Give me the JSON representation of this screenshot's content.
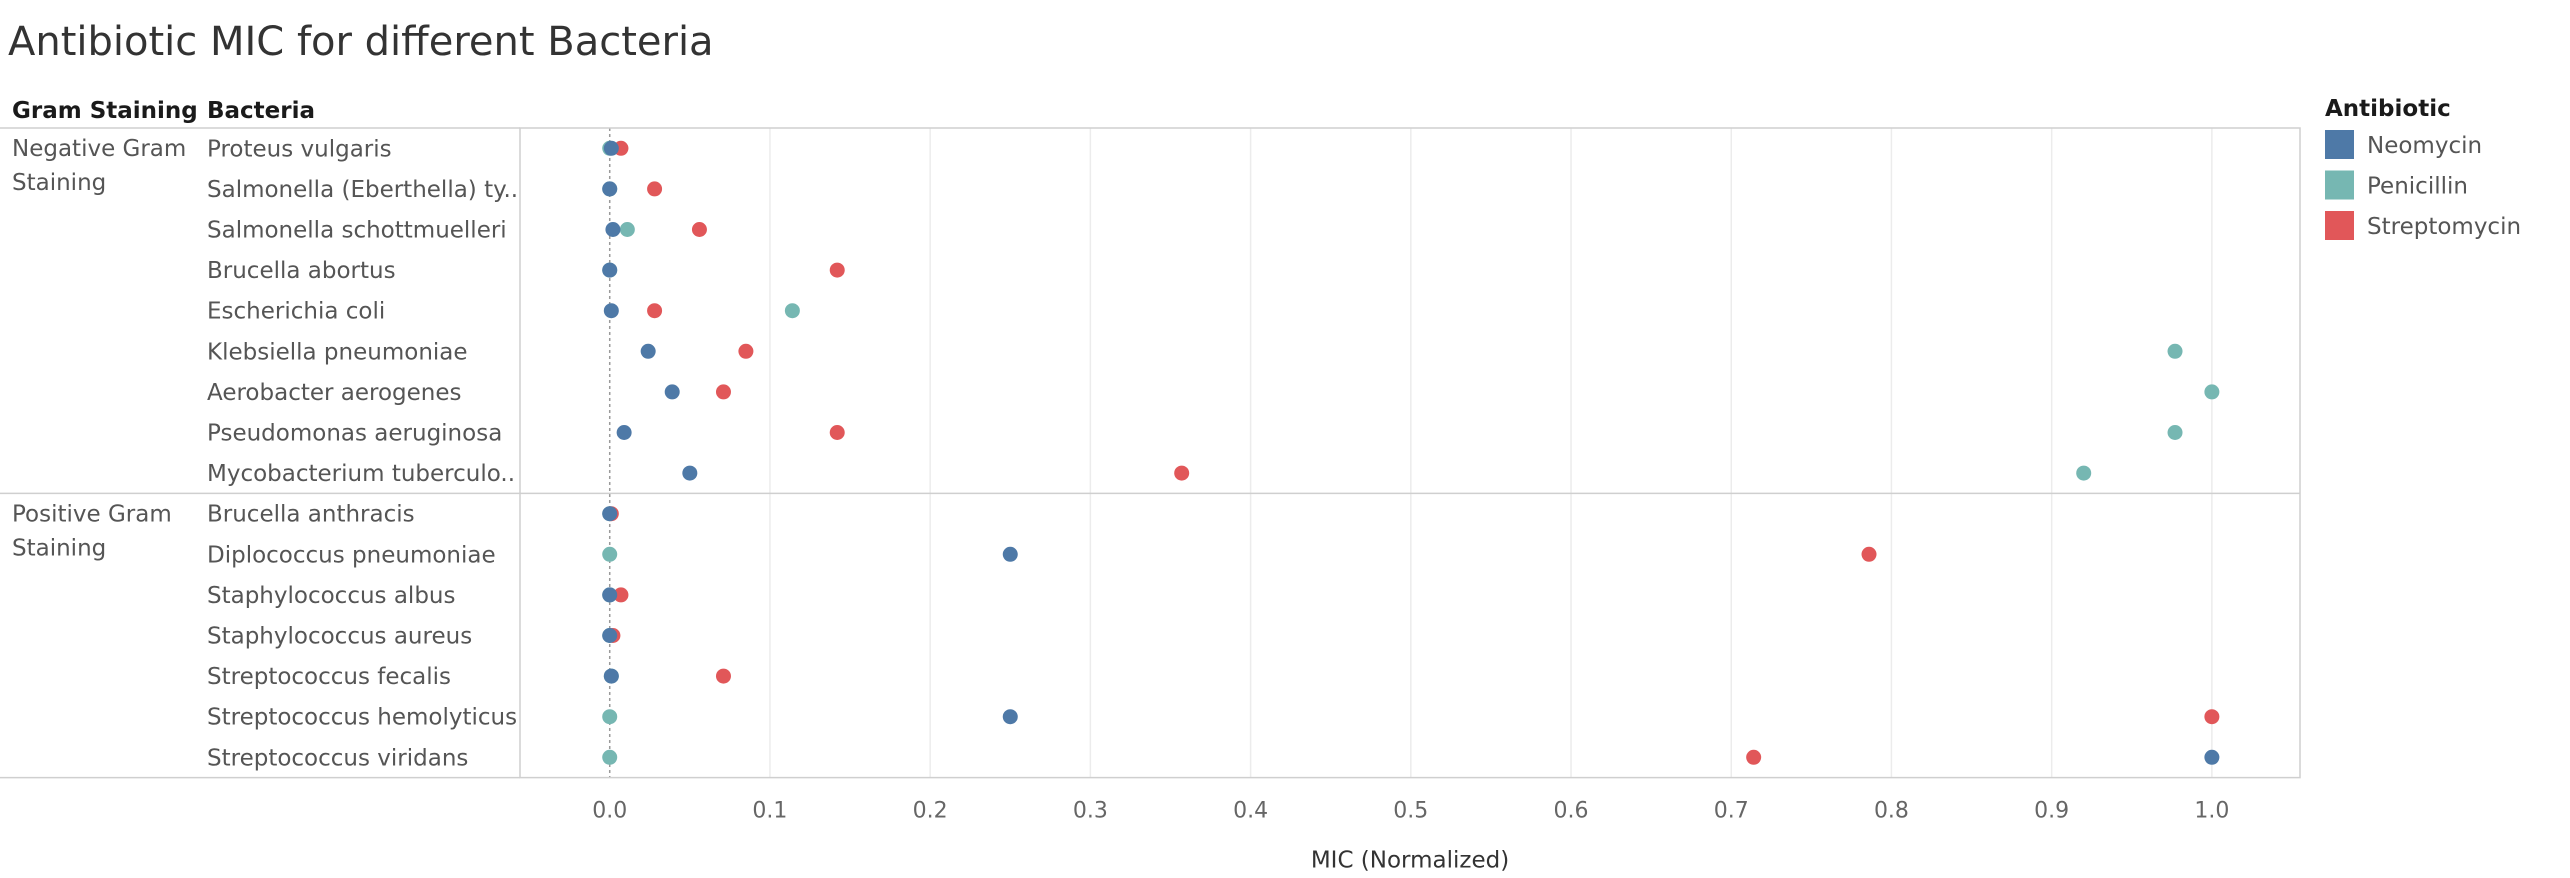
{
  "chart_data": {
    "type": "scatter",
    "title": "Antibiotic MIC for different Bacteria",
    "row_headers": [
      "Gram Staining",
      "Bacteria"
    ],
    "xlabel": "MIC (Normalized)",
    "xlim": [
      -0.056,
      1.055
    ],
    "xticks": [
      "0.0",
      "0.1",
      "0.2",
      "0.3",
      "0.4",
      "0.5",
      "0.6",
      "0.7",
      "0.8",
      "0.9",
      "1.0"
    ],
    "legend": {
      "title": "Antibiotic",
      "items": [
        {
          "name": "Neomycin",
          "color": "#4e79a7"
        },
        {
          "name": "Penicillin",
          "color": "#76b7b2"
        },
        {
          "name": "Streptomycin",
          "color": "#e15759"
        }
      ]
    },
    "groups": [
      {
        "name_lines": [
          "Negative Gram",
          "Staining"
        ],
        "rows": [
          {
            "label": "Proteus vulgaris",
            "values": {
              "Penicillin": 0.0,
              "Streptomycin": 0.007,
              "Neomycin": 0.001
            }
          },
          {
            "label": "Salmonella (Eberthella) ty..",
            "values": {
              "Penicillin": 0.0,
              "Streptomycin": 0.028,
              "Neomycin": 0.0
            }
          },
          {
            "label": "Salmonella schottmuelleri",
            "values": {
              "Penicillin": 0.011,
              "Streptomycin": 0.056,
              "Neomycin": 0.002
            }
          },
          {
            "label": "Brucella abortus",
            "values": {
              "Penicillin": 0.0,
              "Streptomycin": 0.142,
              "Neomycin": 0.0
            }
          },
          {
            "label": "Escherichia coli",
            "values": {
              "Penicillin": 0.114,
              "Streptomycin": 0.028,
              "Neomycin": 0.001
            }
          },
          {
            "label": "Klebsiella pneumoniae",
            "values": {
              "Penicillin": 0.977,
              "Streptomycin": 0.085,
              "Neomycin": 0.024
            }
          },
          {
            "label": "Aerobacter aerogenes",
            "values": {
              "Penicillin": 1.0,
              "Streptomycin": 0.071,
              "Neomycin": 0.039
            }
          },
          {
            "label": "Pseudomonas aeruginosa",
            "values": {
              "Penicillin": 0.977,
              "Streptomycin": 0.142,
              "Neomycin": 0.009
            }
          },
          {
            "label": "Mycobacterium tuberculo..",
            "values": {
              "Penicillin": 0.92,
              "Streptomycin": 0.357,
              "Neomycin": 0.05
            }
          }
        ]
      },
      {
        "name_lines": [
          "Positive Gram",
          "Staining"
        ],
        "rows": [
          {
            "label": "Brucella anthracis",
            "values": {
              "Penicillin": 0.0,
              "Streptomycin": 0.001,
              "Neomycin": 0.0
            }
          },
          {
            "label": "Diplococcus pneumoniae",
            "values": {
              "Penicillin": 0.0,
              "Streptomycin": 0.786,
              "Neomycin": 0.25
            }
          },
          {
            "label": "Staphylococcus albus",
            "values": {
              "Penicillin": 0.0,
              "Streptomycin": 0.007,
              "Neomycin": 0.0
            }
          },
          {
            "label": "Staphylococcus aureus",
            "values": {
              "Penicillin": 0.0,
              "Streptomycin": 0.002,
              "Neomycin": 0.0
            }
          },
          {
            "label": "Streptococcus fecalis",
            "values": {
              "Penicillin": 0.001,
              "Streptomycin": 0.071,
              "Neomycin": 0.001
            }
          },
          {
            "label": "Streptococcus hemolyticus",
            "values": {
              "Penicillin": 0.0,
              "Streptomycin": 1.0,
              "Neomycin": 0.25
            }
          },
          {
            "label": "Streptococcus viridans",
            "values": {
              "Penicillin": 0.0,
              "Streptomycin": 0.714,
              "Neomycin": 1.0
            }
          }
        ]
      }
    ]
  }
}
